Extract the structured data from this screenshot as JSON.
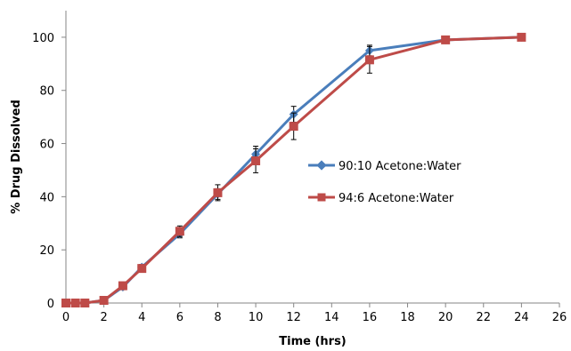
{
  "chart_data": {
    "type": "line",
    "title": "",
    "xlabel": "Time (hrs)",
    "ylabel": "% Drug Dissolved",
    "xlim": [
      0,
      26
    ],
    "ylim": [
      0,
      110
    ],
    "x_ticks": [
      0,
      2,
      4,
      6,
      8,
      10,
      12,
      14,
      16,
      18,
      20,
      22,
      24,
      26
    ],
    "y_ticks": [
      0,
      20,
      40,
      60,
      80,
      100
    ],
    "grid": false,
    "legend_position": "right",
    "series": [
      {
        "name": "90:10 Acetone:Water",
        "color": "#4a7ebb",
        "marker": "diamond",
        "x": [
          0,
          0.5,
          1,
          2,
          3,
          4,
          6,
          8,
          10,
          12,
          16,
          20,
          24
        ],
        "y": [
          0,
          0,
          0,
          1,
          6,
          13.5,
          26,
          41,
          56,
          71,
          95,
          99,
          100
        ],
        "error": [
          0,
          0,
          0,
          0.5,
          1,
          1,
          1.5,
          2,
          3,
          3,
          2,
          1,
          0.5
        ]
      },
      {
        "name": "94:6 Acetone:Water",
        "color": "#be4b48",
        "marker": "square",
        "x": [
          0,
          0.5,
          1,
          2,
          3,
          4,
          6,
          8,
          10,
          12,
          16,
          20,
          24
        ],
        "y": [
          0,
          0,
          0,
          1,
          6.5,
          13,
          27,
          41.5,
          53.5,
          66.5,
          91.5,
          99,
          100
        ],
        "error": [
          0,
          0,
          0,
          0.5,
          1,
          1,
          2,
          3,
          4.5,
          5,
          5,
          1,
          0.5
        ]
      }
    ]
  }
}
